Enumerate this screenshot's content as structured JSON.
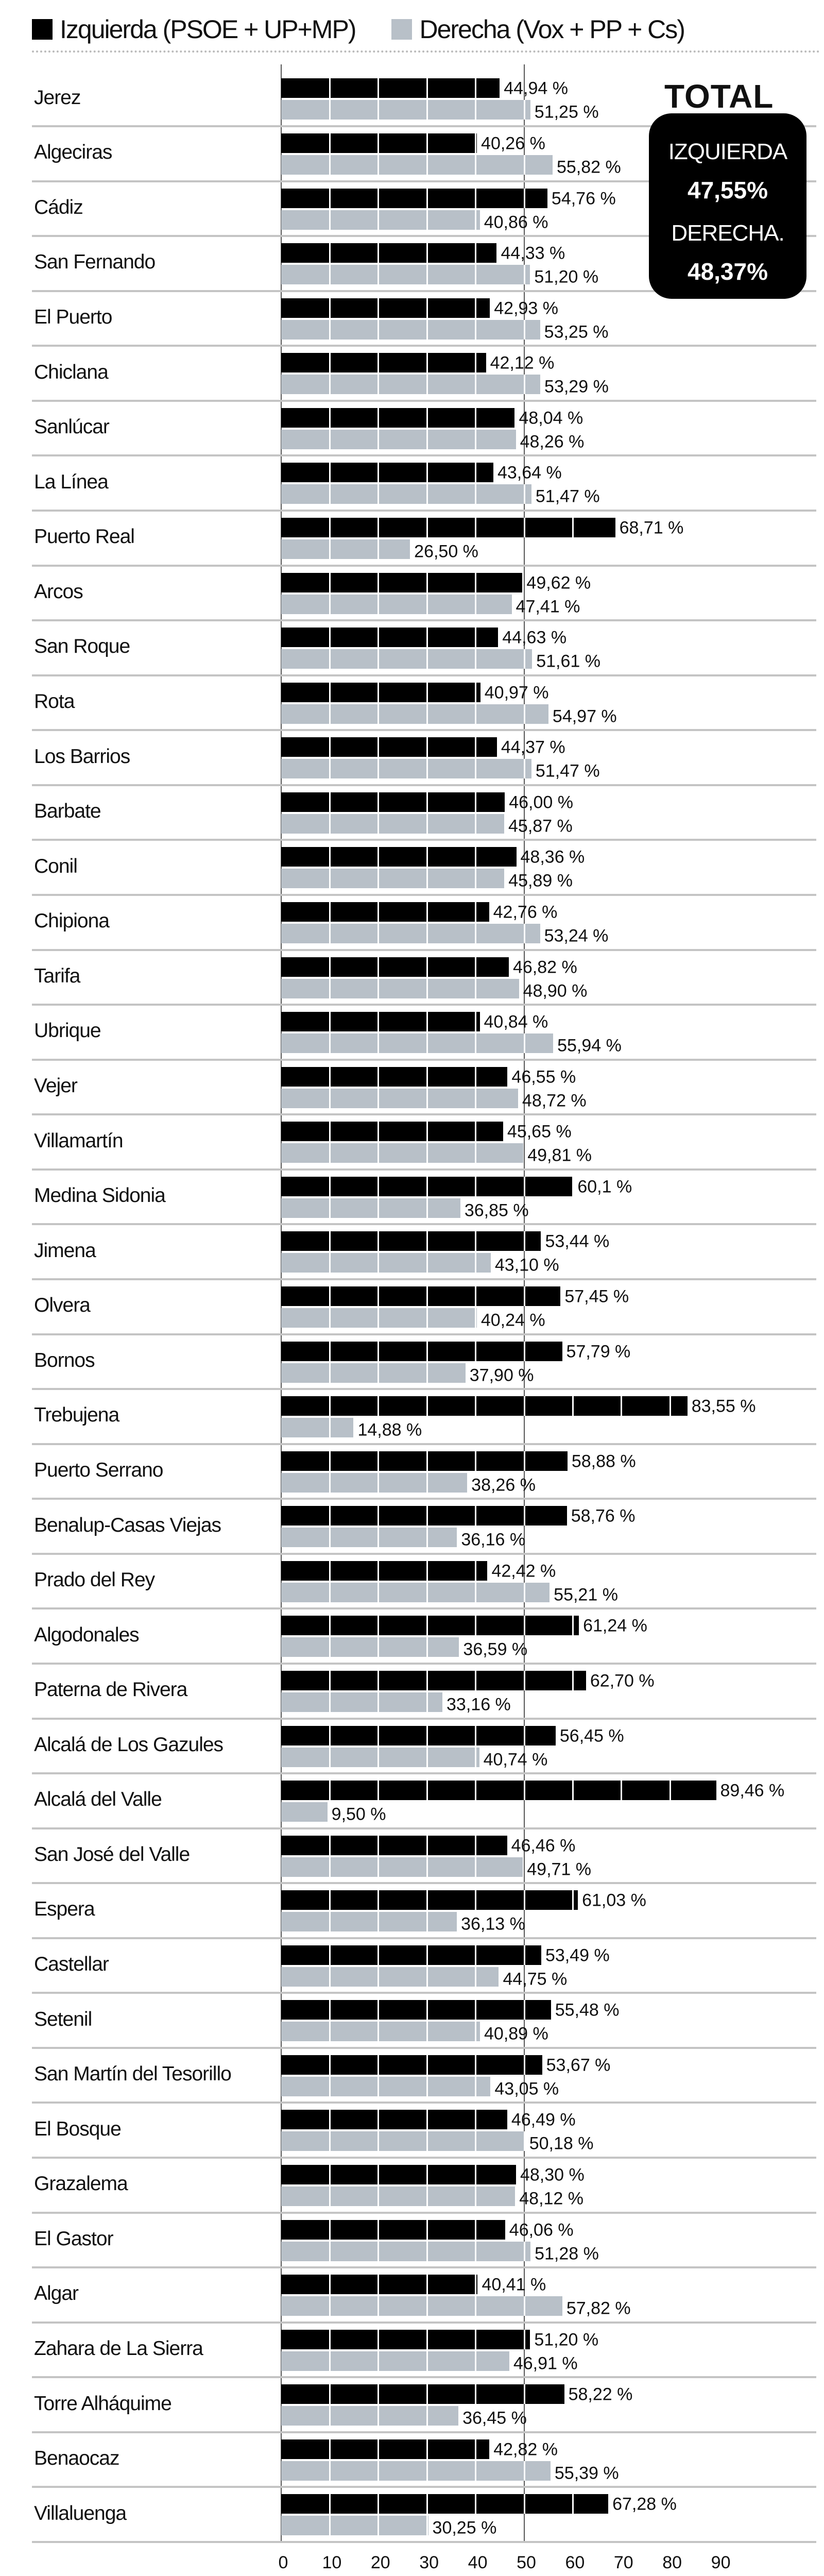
{
  "legend": [
    {
      "label": "Izquierda (PSOE + UP+MP)",
      "color": "#000000"
    },
    {
      "label": "Derecha (Vox + PP + Cs)",
      "color": "#b8c0c8"
    }
  ],
  "total": {
    "title": "TOTAL",
    "izquierda_label": "IZQUIERDA",
    "izquierda_value": "47,55%",
    "derecha_label": "DERECHA.",
    "derecha_value": "48,37%"
  },
  "chart_data": {
    "type": "bar",
    "orientation": "horizontal",
    "xlim": [
      0,
      90
    ],
    "x_ticks": [
      "0",
      "10",
      "20",
      "30",
      "40",
      "50",
      "60",
      "70",
      "80",
      "90"
    ],
    "reference_line": 50,
    "categories": [
      "Jerez",
      "Algeciras",
      "Cádiz",
      "San Fernando",
      "El Puerto",
      "Chiclana",
      "Sanlúcar",
      "La Línea",
      "Puerto Real",
      "Arcos",
      "San Roque",
      "Rota",
      "Los Barrios",
      "Barbate",
      "Conil",
      "Chipiona",
      "Tarifa",
      "Ubrique",
      "Vejer",
      "Villamartín",
      "Medina Sidonia",
      "Jimena",
      "Olvera",
      "Bornos",
      "Trebujena",
      "Puerto Serrano",
      "Benalup-Casas Viejas",
      "Prado del Rey",
      "Algodonales",
      "Paterna de Rivera",
      "Alcalá de Los Gazules",
      "Alcalá del Valle",
      "San José del Valle",
      "Espera",
      "Castellar",
      "Setenil",
      "San Martín del Tesorillo",
      "El Bosque",
      "Grazalema",
      "El Gastor",
      "Algar",
      "Zahara de La Sierra",
      "Torre Alháquime",
      "Benaocaz",
      "Villaluenga"
    ],
    "series": [
      {
        "name": "Izquierda (PSOE + UP+MP)",
        "color": "#000000",
        "values": [
          44.94,
          40.26,
          54.76,
          44.33,
          42.93,
          42.12,
          48.04,
          43.64,
          68.71,
          49.62,
          44.63,
          40.97,
          44.37,
          46.0,
          48.36,
          42.76,
          46.82,
          40.84,
          46.55,
          45.65,
          60.1,
          53.44,
          57.45,
          57.79,
          83.55,
          58.88,
          58.76,
          42.42,
          61.24,
          62.7,
          56.45,
          89.46,
          46.46,
          61.03,
          53.49,
          55.48,
          53.67,
          46.49,
          48.3,
          46.06,
          40.41,
          51.2,
          58.22,
          42.82,
          67.28
        ],
        "labels": [
          "44,94 %",
          "40,26 %",
          "54,76 %",
          "44,33 %",
          "42,93 %",
          "42,12 %",
          "48,04 %",
          "43,64 %",
          "68,71 %",
          "49,62 %",
          "44,63 %",
          "40,97 %",
          "44,37 %",
          "46,00 %",
          "48,36 %",
          "42,76 %",
          "46,82 %",
          "40,84 %",
          "46,55 %",
          "45,65 %",
          "60,1 %",
          "53,44 %",
          "57,45 %",
          "57,79 %",
          "83,55 %",
          "58,88 %",
          "58,76 %",
          "42,42 %",
          "61,24 %",
          "62,70 %",
          "56,45 %",
          "89,46 %",
          "46,46 %",
          "61,03 %",
          "53,49 %",
          "55,48 %",
          "53,67 %",
          "46,49 %",
          "48,30 %",
          "46,06 %",
          "40,41 %",
          "51,20 %",
          "58,22 %",
          "42,82 %",
          "67,28 %"
        ]
      },
      {
        "name": "Derecha (Vox + PP + Cs)",
        "color": "#b8c0c8",
        "values": [
          51.25,
          55.82,
          40.86,
          51.2,
          53.25,
          53.29,
          48.26,
          51.47,
          26.5,
          47.41,
          51.61,
          54.97,
          51.47,
          45.87,
          45.89,
          53.24,
          48.9,
          55.94,
          48.72,
          49.81,
          36.85,
          43.1,
          40.24,
          37.9,
          14.88,
          38.26,
          36.16,
          55.21,
          36.59,
          33.16,
          40.74,
          9.5,
          49.71,
          36.13,
          44.75,
          40.89,
          43.05,
          50.18,
          48.12,
          51.28,
          57.82,
          46.91,
          36.45,
          55.39,
          30.25
        ],
        "labels": [
          "51,25 %",
          "55,82 %",
          "40,86 %",
          "51,20 %",
          "53,25 %",
          "53,29 %",
          "48,26 %",
          "51,47 %",
          "26,50 %",
          "47,41 %",
          "51,61 %",
          "54,97 %",
          "51,47 %",
          "45,87 %",
          "45,89 %",
          "53,24 %",
          "48,90 %",
          "55,94 %",
          "48,72 %",
          "49,81 %",
          "36,85 %",
          "43,10 %",
          "40,24 %",
          "37,90 %",
          "14,88 %",
          "38,26 %",
          "36,16 %",
          "55,21 %",
          "36,59 %",
          "33,16 %",
          "40,74 %",
          "9,50 %",
          "49,71 %",
          "36,13 %",
          "44,75 %",
          "40,89 %",
          "43,05 %",
          "50,18 %",
          "48,12 %",
          "51,28 %",
          "57,82 %",
          "46,91 %",
          "36,45 %",
          "55,39 %",
          "30,25 %"
        ]
      }
    ]
  }
}
